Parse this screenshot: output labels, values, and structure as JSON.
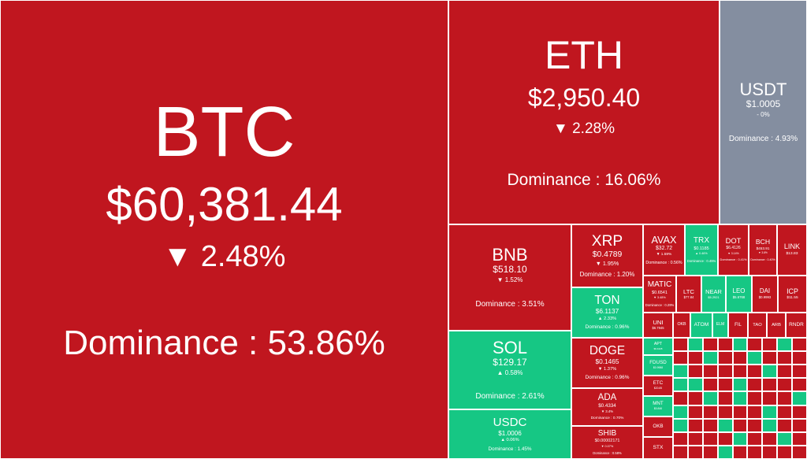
{
  "colors": {
    "down": "#c0161f",
    "up": "#16c784",
    "flat": "#848ea0"
  },
  "chart_data": {
    "type": "treemap",
    "metric": "Dominance",
    "items": [
      {
        "symbol": "BTC",
        "price": "$60,381.44",
        "change": "2.48%",
        "direction": "down",
        "dominance": "Dominance : 53.86%",
        "value": 53.86
      },
      {
        "symbol": "ETH",
        "price": "$2,950.40",
        "change": "2.28%",
        "direction": "down",
        "dominance": "Dominance : 16.06%",
        "value": 16.06
      },
      {
        "symbol": "USDT",
        "price": "$1.0005",
        "change": "0%",
        "direction": "flat",
        "dominance": "Dominance : 4.93%",
        "value": 4.93
      },
      {
        "symbol": "BNB",
        "price": "$518.10",
        "change": "1.52%",
        "direction": "down",
        "dominance": "Dominance : 3.51%",
        "value": 3.51
      },
      {
        "symbol": "SOL",
        "price": "$129.17",
        "change": "0.58%",
        "direction": "up",
        "dominance": "Dominance : 2.61%",
        "value": 2.61
      },
      {
        "symbol": "USDC",
        "price": "$1.0006",
        "change": "0.06%",
        "direction": "up",
        "dominance": "Dominance : 1.45%",
        "value": 1.45
      },
      {
        "symbol": "XRP",
        "price": "$0.4789",
        "change": "1.95%",
        "direction": "down",
        "dominance": "Dominance : 1.20%",
        "value": 1.2
      },
      {
        "symbol": "TON",
        "price": "$6.1137",
        "change": "2.33%",
        "direction": "up",
        "dominance": "Dominance : 0.96%",
        "value": 0.96
      },
      {
        "symbol": "DOGE",
        "price": "$0.1465",
        "change": "1.37%",
        "direction": "down",
        "dominance": "Dominance : 0.96%",
        "value": 0.96
      },
      {
        "symbol": "ADA",
        "price": "$0.4334",
        "change": "3.4%",
        "direction": "down",
        "dominance": "Dominance : 0.70%",
        "value": 0.7
      },
      {
        "symbol": "SHIB",
        "price": "$0.00002171",
        "change": "0.07%",
        "direction": "down",
        "dominance": "Dominance : 0.58%",
        "value": 0.58
      },
      {
        "symbol": "AVAX",
        "price": "$32.72",
        "change": "1.59%",
        "direction": "down",
        "dominance": "Dominance : 0.56%",
        "value": 0.56
      },
      {
        "symbol": "TRX",
        "price": "$0.1185",
        "change": "0.46%",
        "direction": "up",
        "dominance": "Dominance : 0.45%",
        "value": 0.45
      },
      {
        "symbol": "DOT",
        "price": "$6.4126",
        "change": "3.14%",
        "direction": "down",
        "dominance": "Dominance : 0.41%",
        "value": 0.41
      },
      {
        "symbol": "BCH",
        "price": "$453.91",
        "change": "3.8%",
        "direction": "down",
        "dominance": "Dominance : 0.40%",
        "value": 0.4
      },
      {
        "symbol": "LINK",
        "price": "$13.83",
        "change": "",
        "direction": "down",
        "dominance": "",
        "value": 0.36
      },
      {
        "symbol": "MATIC",
        "price": "$0.6541",
        "change": "3.48%",
        "direction": "down",
        "dominance": "Dominance : 0.29%",
        "value": 0.29
      },
      {
        "symbol": "LTC",
        "price": "$77.84",
        "change": "",
        "direction": "down",
        "dominance": "",
        "value": 0.25
      },
      {
        "symbol": "NEAR",
        "price": "$5.2921",
        "change": "",
        "direction": "up",
        "dominance": "",
        "value": 0.24
      },
      {
        "symbol": "LEO",
        "price": "$5.6768",
        "change": "",
        "direction": "up",
        "dominance": "",
        "value": 0.23
      },
      {
        "symbol": "DAI",
        "price": "$0.9993",
        "change": "",
        "direction": "down",
        "dominance": "",
        "value": 0.22
      },
      {
        "symbol": "ICP",
        "price": "$11.55",
        "change": "",
        "direction": "down",
        "dominance": "",
        "value": 0.22
      },
      {
        "symbol": "UNI",
        "price": "$6.7945",
        "change": "",
        "direction": "down",
        "dominance": "",
        "value": 0.18
      },
      {
        "symbol": "OKB",
        "price": "",
        "change": "",
        "direction": "down",
        "dominance": "",
        "value": 0.09
      },
      {
        "symbol": "ATOM",
        "price": "",
        "change": "",
        "direction": "up",
        "dominance": "",
        "value": 0.09
      },
      {
        "symbol": "ELM",
        "price": "",
        "change": "",
        "direction": "up",
        "dominance": "",
        "value": 0.09
      },
      {
        "symbol": "FIL",
        "price": "",
        "change": "",
        "direction": "down",
        "dominance": "",
        "value": 0.09
      },
      {
        "symbol": "TAO",
        "price": "",
        "change": "",
        "direction": "down",
        "dominance": "",
        "value": 0.08
      },
      {
        "symbol": "ARB",
        "price": "",
        "change": "",
        "direction": "down",
        "dominance": "",
        "value": 0.08
      },
      {
        "symbol": "RNDR",
        "price": "",
        "change": "",
        "direction": "down",
        "dominance": "",
        "value": 0.08
      },
      {
        "symbol": "APT",
        "price": "$6.4428",
        "change": "",
        "direction": "up",
        "dominance": "",
        "value": 0.12
      },
      {
        "symbol": "FDUSD",
        "price": "$0.9988",
        "change": "",
        "direction": "up",
        "dominance": "",
        "value": 0.1
      },
      {
        "symbol": "ETC",
        "price": "$20.85",
        "change": "",
        "direction": "down",
        "dominance": "",
        "value": 0.1
      },
      {
        "symbol": "MNT",
        "price": "$0.846",
        "change": "",
        "direction": "up",
        "dominance": "",
        "value": 0.09
      },
      {
        "symbol": "OKB",
        "price": "",
        "change": "",
        "direction": "down",
        "dominance": "",
        "value": 0.06
      },
      {
        "symbol": "STX",
        "price": "",
        "change": "",
        "direction": "down",
        "dominance": "",
        "value": 0.05
      }
    ]
  }
}
